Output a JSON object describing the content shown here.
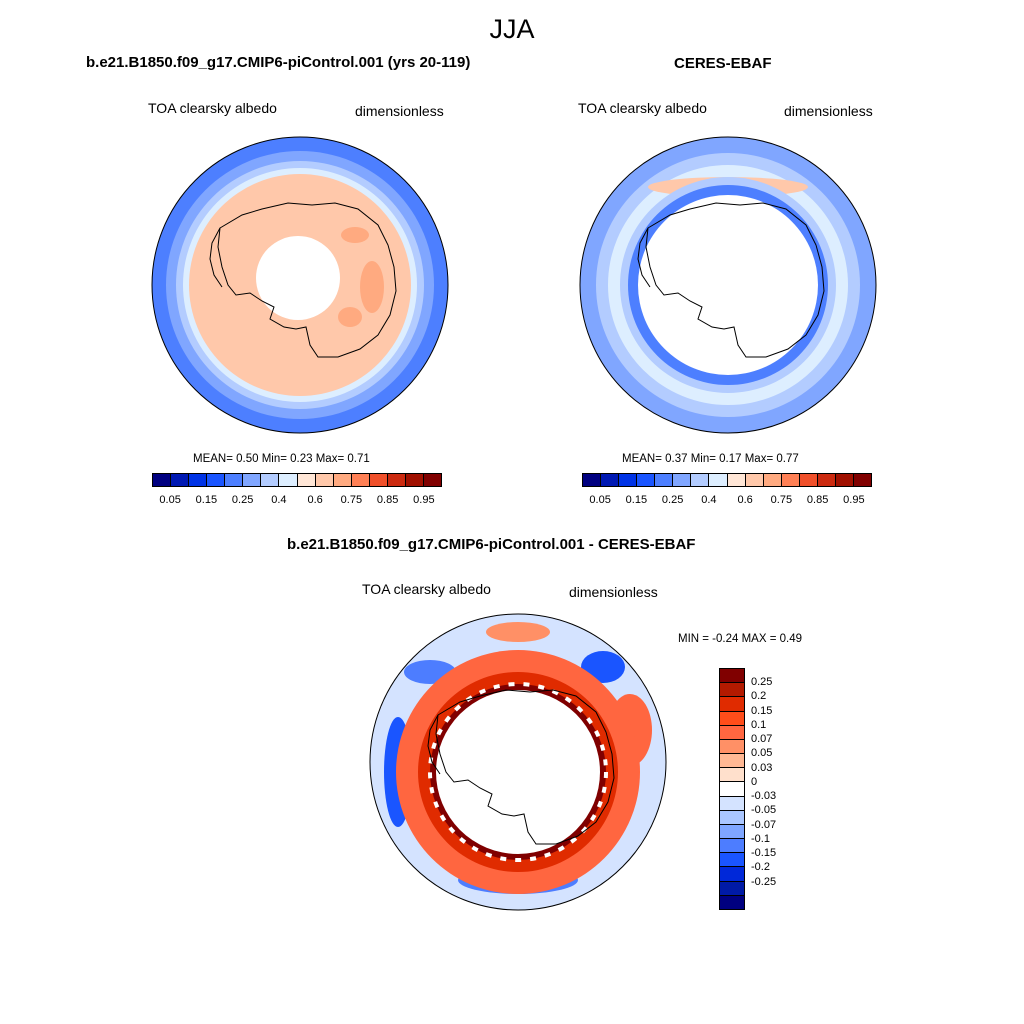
{
  "figure": {
    "season": "JJA"
  },
  "panels": [
    {
      "title": "b.e21.B1850.f09_g17.CMIP6-piControl.001 (yrs 20-119)",
      "variable": "TOA clearsky albedo",
      "units": "dimensionless",
      "stats": "MEAN=   0.50  Min=   0.23  Max=   0.71",
      "colorbar_ticks": [
        "0.05",
        "0.15",
        "0.25",
        "0.4",
        "0.6",
        "0.75",
        "0.85",
        "0.95"
      ]
    },
    {
      "title": "CERES-EBAF",
      "variable": "TOA clearsky albedo",
      "units": "dimensionless",
      "stats": "MEAN=   0.37  Min=   0.17  Max=   0.77",
      "colorbar_ticks": [
        "0.05",
        "0.15",
        "0.25",
        "0.4",
        "0.6",
        "0.75",
        "0.85",
        "0.95"
      ]
    },
    {
      "title": "b.e21.B1850.f09_g17.CMIP6-piControl.001 - CERES-EBAF",
      "variable": "TOA clearsky albedo",
      "units": "dimensionless",
      "stats": "MIN =  -0.24 MAX =   0.49",
      "colorbar_ticks": [
        "0.25",
        "0.2",
        "0.15",
        "0.1",
        "0.07",
        "0.05",
        "0.03",
        "0",
        "-0.03",
        "-0.05",
        "-0.07",
        "-0.1",
        "-0.15",
        "-0.2",
        "-0.25"
      ]
    }
  ],
  "palette": {
    "sequential": [
      "#000080",
      "#0019b3",
      "#0033e6",
      "#1a55ff",
      "#4d7fff",
      "#80a6ff",
      "#b3ccff",
      "#ddeeff",
      "#ffe6d6",
      "#ffc8aa",
      "#ffaa80",
      "#ff8055",
      "#f0502a",
      "#cc2a10",
      "#a01000",
      "#800000"
    ],
    "diverging": [
      "#800000",
      "#b31a00",
      "#e02b00",
      "#ff4d1a",
      "#ff6640",
      "#ff9066",
      "#ffb894",
      "#ffe0cc",
      "#ffffff",
      "#d4e3ff",
      "#aac6ff",
      "#7fa6ff",
      "#4d7dff",
      "#1a55ff",
      "#0028d9",
      "#001aa6",
      "#000080"
    ]
  }
}
